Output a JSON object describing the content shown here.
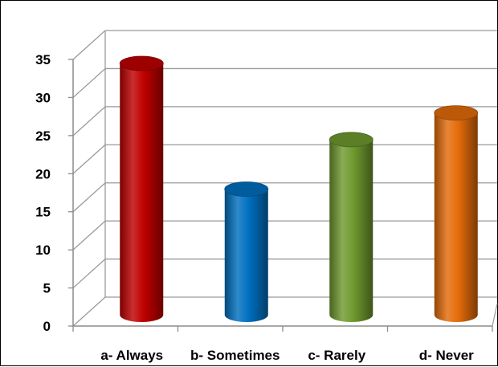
{
  "chart_data": {
    "type": "bar",
    "style": "3d-cylinder",
    "categories": [
      "a- Always",
      "b- Sometimes",
      "c- Rarely",
      "d- Never"
    ],
    "values": [
      33,
      16.5,
      23,
      26.5
    ],
    "colors": [
      "#c00000",
      "#0070c0",
      "#6f9a2e",
      "#e46c0a"
    ],
    "ylim": [
      0,
      35
    ],
    "yticks": [
      0,
      5,
      10,
      15,
      20,
      25,
      30,
      35
    ],
    "title": "",
    "xlabel": "",
    "ylabel": "",
    "grid": true,
    "legend": "none"
  }
}
